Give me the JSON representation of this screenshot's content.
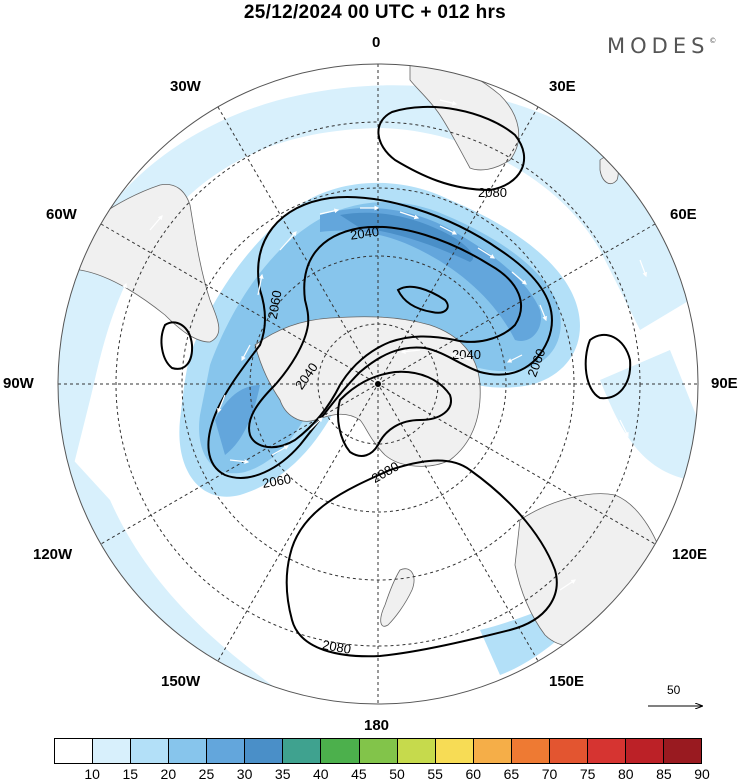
{
  "header": {
    "title": "25/12/2024  00 UTC  + 012 hrs",
    "brand": "MODES",
    "brand_mark": "©"
  },
  "map": {
    "projection": "south-polar-stereographic",
    "longitude_labels": {
      "top": "0",
      "top_right": "30E",
      "right_upper": "60E",
      "right": "90E",
      "right_lower": "120E",
      "bottom_right": "150E",
      "bottom": "180",
      "bottom_left": "150W",
      "left_lower": "120W",
      "left": "90W",
      "left_upper": "60W",
      "top_left": "30W"
    },
    "contour_labels": [
      "2080",
      "2040",
      "2060",
      "2040",
      "2040",
      "2060",
      "2060",
      "2080",
      "2080"
    ],
    "contour_interval": 20,
    "colors": {
      "land": "#f0f0f0",
      "coast": "#666666",
      "grid": "#333333",
      "contour": "#000000",
      "wind_arrow": "#ffffff"
    },
    "vector_scale_label": "50"
  },
  "legend": {
    "labels": [
      "10",
      "15",
      "20",
      "25",
      "30",
      "35",
      "40",
      "45",
      "50",
      "55",
      "60",
      "65",
      "70",
      "75",
      "80",
      "85",
      "90"
    ],
    "colors": [
      "#ffffff",
      "#d8f0fc",
      "#b3e0f8",
      "#87c5ec",
      "#63a6dc",
      "#4a8fc8",
      "#3fa28f",
      "#4cb04c",
      "#82c44a",
      "#c6da4c",
      "#f7dc55",
      "#f5ae48",
      "#ee7a33",
      "#e35530",
      "#d63431",
      "#bc2127",
      "#991a20"
    ]
  }
}
